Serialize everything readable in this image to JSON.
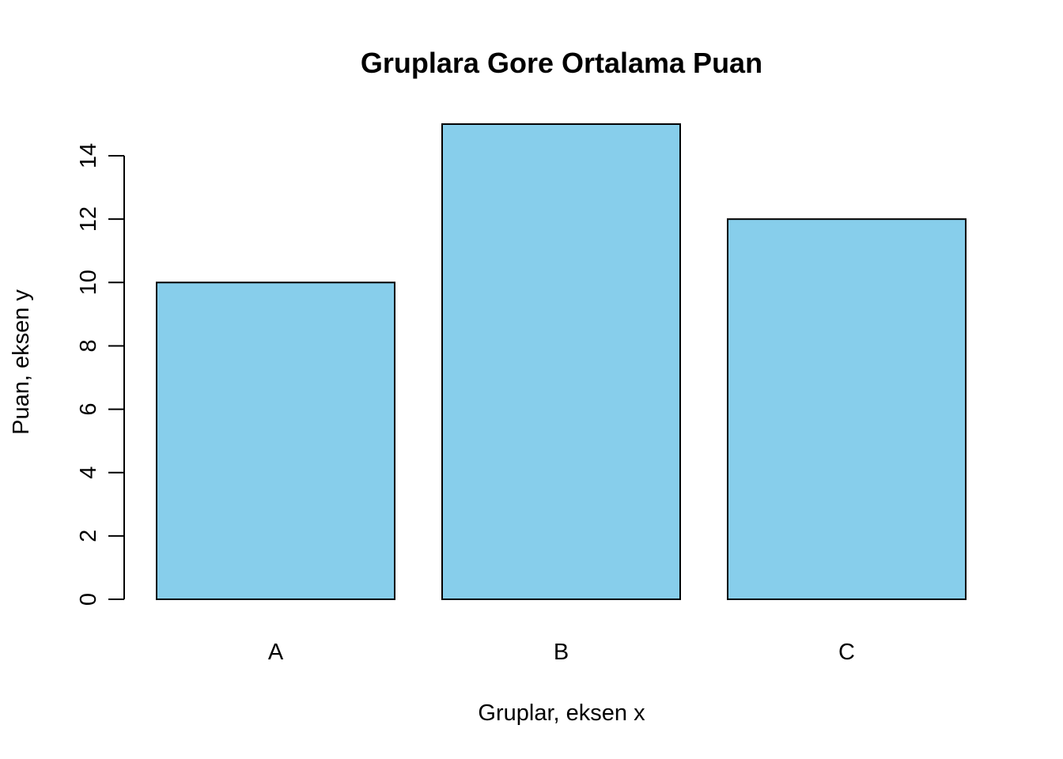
{
  "chart_data": {
    "type": "bar",
    "title": "Gruplara Gore Ortalama Puan",
    "xlabel": "Gruplar, eksen x",
    "ylabel": "Puan, eksen y",
    "categories": [
      "A",
      "B",
      "C"
    ],
    "values": [
      10,
      15,
      12
    ],
    "ylim": [
      0,
      15
    ],
    "yticks": [
      0,
      2,
      4,
      6,
      8,
      10,
      12,
      14
    ],
    "grid": false,
    "legend": "none",
    "bar_color": "#87CEEB",
    "edge_color": "#000000"
  }
}
